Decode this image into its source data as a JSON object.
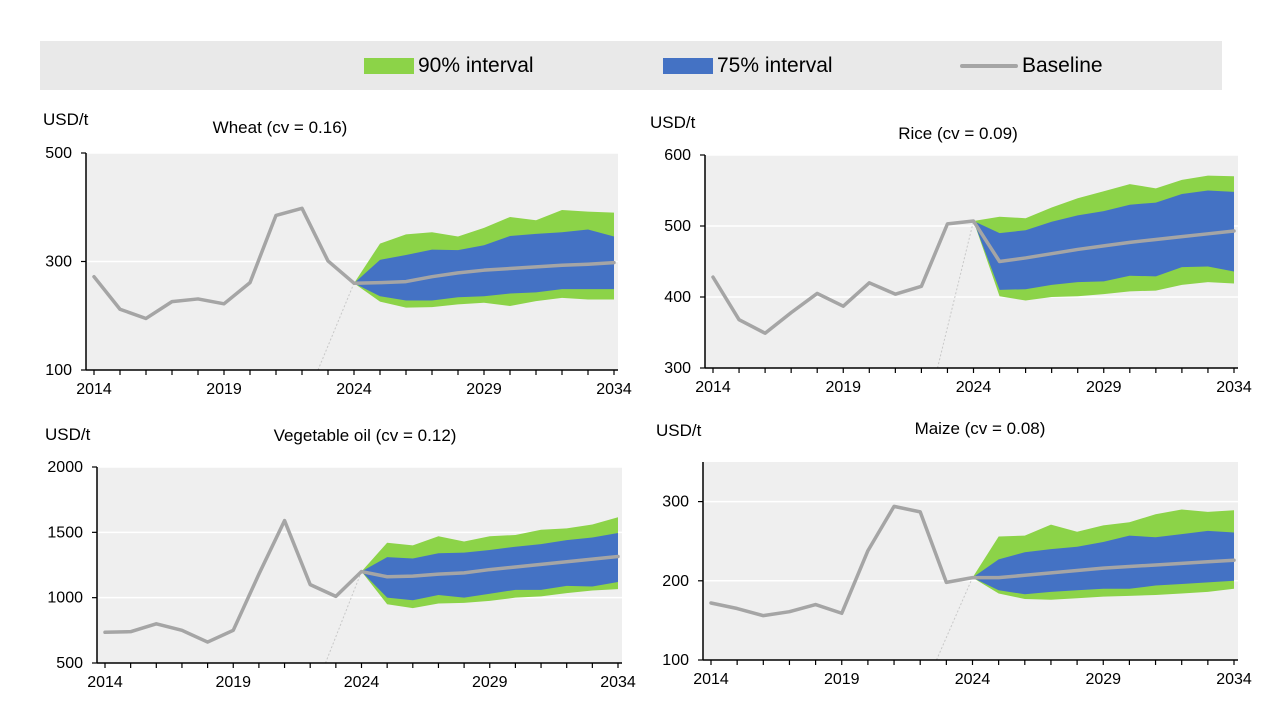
{
  "legend": {
    "items": [
      {
        "label": "90% interval",
        "color": "#8cd348"
      },
      {
        "label": "75% interval",
        "color": "#4472c4"
      },
      {
        "label": "Baseline",
        "color": "#a5a5a5"
      }
    ]
  },
  "chart_data": [
    {
      "type": "area",
      "title": "Wheat (cv = 0.16)",
      "ylabel": "USD/t",
      "ylim": [
        100,
        500
      ],
      "yticks": [
        100,
        300,
        500
      ],
      "xlim": [
        2014,
        2034
      ],
      "xticks": [
        2014,
        2019,
        2024,
        2029,
        2034
      ],
      "baseline": {
        "x": [
          2014,
          2015,
          2016,
          2017,
          2018,
          2019,
          2020,
          2021,
          2022,
          2023,
          2024,
          2025,
          2026,
          2027,
          2028,
          2029,
          2030,
          2031,
          2032,
          2033,
          2034
        ],
        "y": [
          272,
          212,
          195,
          226,
          231,
          222,
          261,
          385,
          398,
          301,
          260,
          261,
          263,
          272,
          279,
          284,
          287,
          290,
          293,
          295,
          298
        ]
      },
      "interval_x": [
        2024,
        2025,
        2026,
        2027,
        2028,
        2029,
        2030,
        2031,
        2032,
        2033,
        2034
      ],
      "p90_low": [
        260,
        226,
        215,
        216,
        221,
        224,
        218,
        227,
        233,
        230,
        230
      ],
      "p90_high": [
        260,
        333,
        350,
        354,
        346,
        362,
        382,
        376,
        395,
        392,
        390
      ],
      "p75_low": [
        260,
        236,
        228,
        228,
        234,
        236,
        241,
        243,
        249,
        249,
        249
      ],
      "p75_high": [
        260,
        303,
        312,
        322,
        321,
        330,
        347,
        351,
        354,
        359,
        346
      ]
    },
    {
      "type": "area",
      "title": "Rice (cv = 0.09)",
      "ylabel": "USD/t",
      "ylim": [
        300,
        600
      ],
      "yticks": [
        300,
        400,
        500,
        600
      ],
      "xlim": [
        2014,
        2034
      ],
      "xticks": [
        2014,
        2019,
        2024,
        2029,
        2034
      ],
      "baseline": {
        "x": [
          2014,
          2015,
          2016,
          2017,
          2018,
          2019,
          2020,
          2021,
          2022,
          2023,
          2024,
          2025,
          2026,
          2027,
          2028,
          2029,
          2030,
          2031,
          2032,
          2033,
          2034
        ],
        "y": [
          428,
          368,
          349,
          378,
          405,
          387,
          420,
          404,
          415,
          503,
          507,
          450,
          455,
          461,
          467,
          472,
          477,
          481,
          485,
          489,
          493
        ]
      },
      "interval_x": [
        2024,
        2025,
        2026,
        2027,
        2028,
        2029,
        2030,
        2031,
        2032,
        2033,
        2034
      ],
      "p90_low": [
        507,
        401,
        395,
        400,
        401,
        404,
        408,
        409,
        417,
        421,
        419
      ],
      "p90_high": [
        507,
        513,
        511,
        526,
        539,
        549,
        559,
        553,
        565,
        571,
        570
      ],
      "p75_low": [
        507,
        410,
        411,
        417,
        421,
        422,
        430,
        429,
        442,
        443,
        436
      ],
      "p75_high": [
        507,
        490,
        494,
        506,
        515,
        521,
        530,
        533,
        545,
        550,
        548
      ]
    },
    {
      "type": "area",
      "title": "Vegetable oil (cv = 0.12)",
      "ylabel": "USD/t",
      "ylim": [
        500,
        2000
      ],
      "yticks": [
        500,
        1000,
        1500,
        2000
      ],
      "xlim": [
        2014,
        2034
      ],
      "xticks": [
        2014,
        2019,
        2024,
        2029,
        2034
      ],
      "baseline": {
        "x": [
          2014,
          2015,
          2016,
          2017,
          2018,
          2019,
          2020,
          2021,
          2022,
          2023,
          2024,
          2025,
          2026,
          2027,
          2028,
          2029,
          2030,
          2031,
          2032,
          2033,
          2034
        ],
        "y": [
          735,
          740,
          800,
          750,
          660,
          750,
          1180,
          1590,
          1100,
          1010,
          1200,
          1160,
          1165,
          1180,
          1190,
          1215,
          1235,
          1255,
          1275,
          1295,
          1315
        ]
      },
      "interval_x": [
        2024,
        2025,
        2026,
        2027,
        2028,
        2029,
        2030,
        2031,
        2032,
        2033,
        2034
      ],
      "p90_low": [
        1200,
        950,
        920,
        955,
        960,
        975,
        1000,
        1010,
        1035,
        1055,
        1065
      ],
      "p90_high": [
        1200,
        1420,
        1400,
        1470,
        1430,
        1470,
        1480,
        1520,
        1530,
        1560,
        1615
      ],
      "p75_low": [
        1200,
        1000,
        980,
        1020,
        1000,
        1030,
        1060,
        1060,
        1090,
        1085,
        1120
      ],
      "p75_high": [
        1200,
        1310,
        1300,
        1340,
        1345,
        1365,
        1390,
        1410,
        1440,
        1460,
        1495
      ]
    },
    {
      "type": "area",
      "title": "Maize (cv = 0.08)",
      "ylabel": "USD/t",
      "ylim": [
        100,
        350
      ],
      "yticks": [
        100,
        200,
        300
      ],
      "xlim": [
        2014,
        2034
      ],
      "xticks": [
        2014,
        2019,
        2024,
        2029,
        2034
      ],
      "baseline": {
        "x": [
          2014,
          2015,
          2016,
          2017,
          2018,
          2019,
          2020,
          2021,
          2022,
          2023,
          2024,
          2025,
          2026,
          2027,
          2028,
          2029,
          2030,
          2031,
          2032,
          2033,
          2034
        ],
        "y": [
          172,
          165,
          156,
          161,
          170,
          159,
          238,
          294,
          287,
          198,
          204,
          204,
          207,
          210,
          213,
          216,
          218,
          220,
          222,
          224,
          226
        ]
      },
      "interval_x": [
        2024,
        2025,
        2026,
        2027,
        2028,
        2029,
        2030,
        2031,
        2032,
        2033,
        2034
      ],
      "p90_low": [
        204,
        184,
        177,
        176,
        178,
        180,
        181,
        182,
        184,
        186,
        190
      ],
      "p90_high": [
        204,
        256,
        257,
        271,
        262,
        270,
        274,
        284,
        290,
        287,
        289
      ],
      "p75_low": [
        204,
        188,
        183,
        186,
        188,
        190,
        190,
        194,
        196,
        198,
        200
      ],
      "p75_high": [
        204,
        227,
        236,
        240,
        243,
        249,
        257,
        255,
        259,
        263,
        261
      ]
    }
  ]
}
